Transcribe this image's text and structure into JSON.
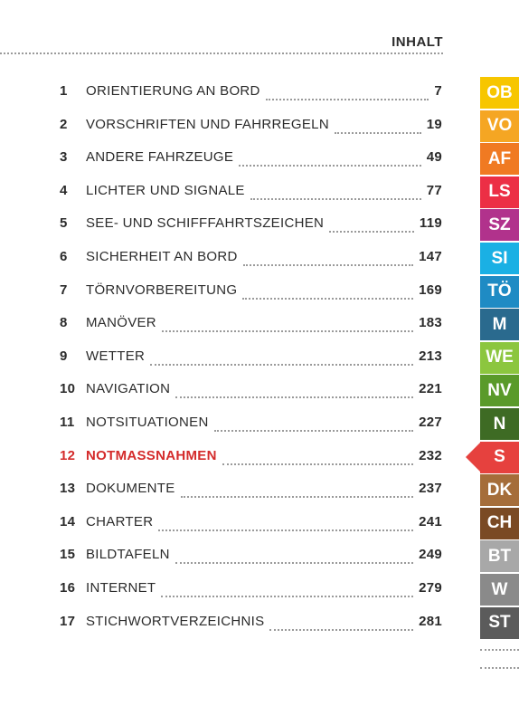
{
  "header": {
    "title": "INHALT"
  },
  "toc": [
    {
      "num": "1",
      "title": "ORIENTIERUNG AN BORD",
      "page": "7"
    },
    {
      "num": "2",
      "title": "VORSCHRIFTEN UND FAHRREGELN",
      "page": "19"
    },
    {
      "num": "3",
      "title": "ANDERE FAHRZEUGE",
      "page": "49"
    },
    {
      "num": "4",
      "title": "LICHTER UND SIGNALE",
      "page": "77"
    },
    {
      "num": "5",
      "title": "SEE- UND SCHIFFFAHRTSZEICHEN",
      "page": "119"
    },
    {
      "num": "6",
      "title": "SICHERHEIT AN BORD",
      "page": "147"
    },
    {
      "num": "7",
      "title": "TÖRNVORBEREITUNG",
      "page": "169"
    },
    {
      "num": "8",
      "title": "MANÖVER",
      "page": "183"
    },
    {
      "num": "9",
      "title": "WETTER",
      "page": "213"
    },
    {
      "num": "10",
      "title": "NAVIGATION",
      "page": "221"
    },
    {
      "num": "11",
      "title": "NOTSITUATIONEN",
      "page": "227"
    },
    {
      "num": "12",
      "title": "NOTMASSNAHMEN",
      "page": "232",
      "active": true
    },
    {
      "num": "13",
      "title": "DOKUMENTE",
      "page": "237"
    },
    {
      "num": "14",
      "title": "CHARTER",
      "page": "241"
    },
    {
      "num": "15",
      "title": "BILDTAFELN",
      "page": "249"
    },
    {
      "num": "16",
      "title": "INTERNET",
      "page": "279"
    },
    {
      "num": "17",
      "title": "STICHWORTVERZEICHNIS",
      "page": "281"
    }
  ],
  "tabs": [
    {
      "abbr": "OB",
      "color": "#f7c600"
    },
    {
      "abbr": "VO",
      "color": "#f5a623"
    },
    {
      "abbr": "AF",
      "color": "#f07a22"
    },
    {
      "abbr": "LS",
      "color": "#ec2f45"
    },
    {
      "abbr": "SZ",
      "color": "#b1328c"
    },
    {
      "abbr": "SI",
      "color": "#1ab0e4"
    },
    {
      "abbr": "TÖ",
      "color": "#1f8bc4"
    },
    {
      "abbr": "M",
      "color": "#2a6a8e"
    },
    {
      "abbr": "WE",
      "color": "#8cc63f"
    },
    {
      "abbr": "NV",
      "color": "#5a9a2a"
    },
    {
      "abbr": "N",
      "color": "#3e6b24"
    },
    {
      "abbr": "S",
      "color": "#e6413e",
      "active": true
    },
    {
      "abbr": "DK",
      "color": "#a56d3a"
    },
    {
      "abbr": "CH",
      "color": "#7a4a24"
    },
    {
      "abbr": "BT",
      "color": "#a8a8a8"
    },
    {
      "abbr": "W",
      "color": "#8a8a8a"
    },
    {
      "abbr": "ST",
      "color": "#5b5b5b"
    }
  ]
}
